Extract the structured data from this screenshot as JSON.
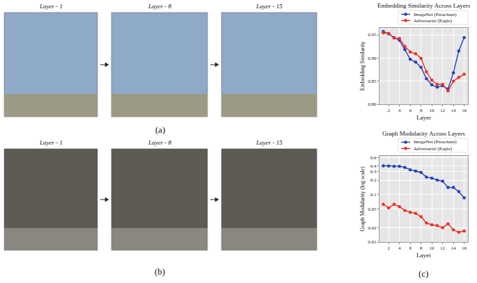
{
  "figure": {
    "image_panels": [
      {
        "label": "(a)",
        "titles": [
          "Layer - 1",
          "Layer - 8",
          "Layer - 15"
        ]
      },
      {
        "label": "(b)",
        "titles": [
          "Layer - 1",
          "Layer - 8",
          "Layer - 15"
        ]
      }
    ],
    "chart_label": "(c)"
  },
  "chart_data": [
    {
      "type": "line",
      "title": "Embedding Similarity Across Layers",
      "x_label": "Layer",
      "y_label": "Embedding Similarity",
      "x": [
        1,
        2,
        3,
        4,
        5,
        6,
        7,
        8,
        9,
        10,
        11,
        12,
        13,
        14,
        15,
        16
      ],
      "xlim": [
        0.3,
        16.7
      ],
      "xticks": [
        2,
        4,
        6,
        8,
        10,
        12,
        14,
        16
      ],
      "ylim": [
        0.8,
        0.965
      ],
      "yticks": [
        {
          "value": 0.8,
          "label": "0.80"
        },
        0.85,
        {
          "value": 0.9,
          "label": "0.90"
        },
        0.95
      ],
      "grid": true,
      "legend": "top",
      "marker": "circle",
      "line_style": "solid",
      "series": [
        {
          "name": "ImageNet (Parachute)",
          "color": "#1f3fbf",
          "values": [
            0.957,
            0.952,
            0.944,
            0.938,
            0.918,
            0.897,
            0.891,
            0.88,
            0.855,
            0.842,
            0.837,
            0.84,
            0.833,
            0.868,
            0.915,
            0.944
          ]
        },
        {
          "name": "Adversarial (Eagle)",
          "color": "#e8302a",
          "values": [
            0.954,
            0.953,
            0.943,
            0.942,
            0.925,
            0.913,
            0.909,
            0.899,
            0.87,
            0.852,
            0.843,
            0.843,
            0.829,
            0.85,
            0.858,
            0.865
          ]
        }
      ]
    },
    {
      "type": "line",
      "title": "Graph Modularity Across Layers",
      "x_label": "Layer",
      "y_label": "Graph Modularity (log scale)",
      "x": [
        1,
        2,
        3,
        4,
        5,
        6,
        7,
        8,
        9,
        10,
        11,
        12,
        13,
        14,
        15,
        16
      ],
      "xlim": [
        0.3,
        16.7
      ],
      "xticks": [
        2,
        4,
        6,
        8,
        10,
        12,
        14,
        16
      ],
      "log": "y",
      "ylim": [
        0.01,
        0.65
      ],
      "yticks": [
        0.01,
        0.02,
        0.05,
        0.1,
        0.2,
        0.3,
        0.4,
        0.6
      ],
      "grid": true,
      "legend": "top",
      "marker": "circle",
      "line_style": "solid",
      "series": [
        {
          "name": "ImageNet (Parachute)",
          "color": "#1f3fbf",
          "values": [
            0.4,
            0.395,
            0.39,
            0.39,
            0.37,
            0.33,
            0.31,
            0.29,
            0.23,
            0.22,
            0.2,
            0.19,
            0.14,
            0.14,
            0.115,
            0.085
          ]
        },
        {
          "name": "Adversarial (Eagle)",
          "color": "#e8302a",
          "values": [
            0.062,
            0.052,
            0.062,
            0.055,
            0.046,
            0.042,
            0.04,
            0.034,
            0.025,
            0.023,
            0.022,
            0.02,
            0.024,
            0.018,
            0.016,
            0.017
          ]
        }
      ]
    }
  ]
}
